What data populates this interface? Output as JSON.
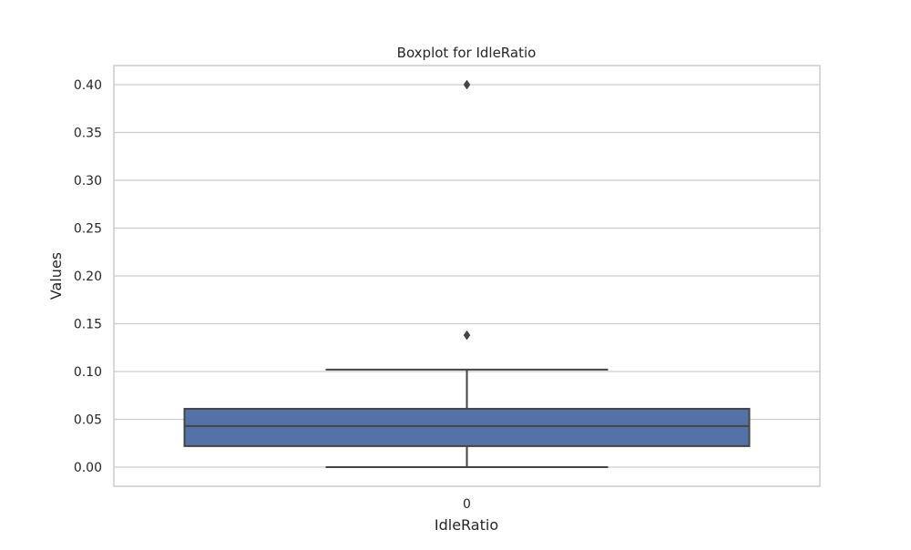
{
  "chart_data": {
    "type": "box",
    "title": "Boxplot for IdleRatio",
    "xlabel": "IdleRatio",
    "ylabel": "Values",
    "categories": [
      "0"
    ],
    "ylim": [
      -0.02,
      0.42
    ],
    "yticks": [
      0.0,
      0.05,
      0.1,
      0.15,
      0.2,
      0.25,
      0.3,
      0.35,
      0.4
    ],
    "ytick_labels": [
      "0.00",
      "0.05",
      "0.10",
      "0.15",
      "0.20",
      "0.25",
      "0.30",
      "0.35",
      "0.40"
    ],
    "grid": true,
    "boxes": [
      {
        "category": "0",
        "whisker_low": 0.0,
        "q1": 0.022,
        "median": 0.043,
        "q3": 0.061,
        "whisker_high": 0.102,
        "outliers": [
          0.138,
          0.4
        ]
      }
    ],
    "colors": {
      "box_fill": "#5572a8",
      "line": "#444444",
      "grid": "#cccccc",
      "frame": "#cccccc",
      "background": "#ffffff"
    }
  }
}
